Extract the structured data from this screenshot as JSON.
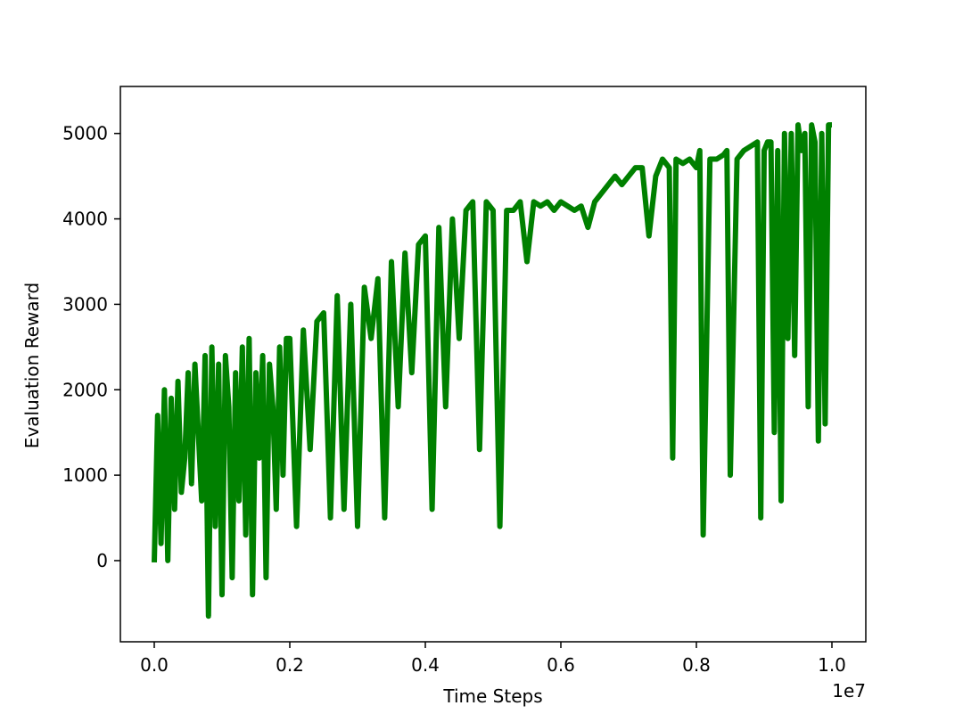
{
  "chart_data": {
    "type": "line",
    "title": "",
    "xlabel": "Time Steps",
    "ylabel": "Evaluation Reward",
    "x_offset_label": "1e7",
    "xlim": [
      -0.05,
      1.05
    ],
    "ylim": [
      -950,
      5550
    ],
    "x_ticks": [
      0.0,
      0.2,
      0.4,
      0.6,
      0.8,
      1.0
    ],
    "x_tick_labels": [
      "0.0",
      "0.2",
      "0.4",
      "0.6",
      "0.8",
      "1.0"
    ],
    "y_ticks": [
      0,
      1000,
      2000,
      3000,
      4000,
      5000
    ],
    "y_tick_labels": [
      "0",
      "1000",
      "2000",
      "3000",
      "4000",
      "5000"
    ],
    "grid": false,
    "legend": "none",
    "series": [
      {
        "color": "#008000",
        "x": [
          0.0,
          0.005,
          0.01,
          0.015,
          0.02,
          0.025,
          0.03,
          0.035,
          0.04,
          0.045,
          0.05,
          0.055,
          0.06,
          0.065,
          0.07,
          0.075,
          0.08,
          0.085,
          0.09,
          0.095,
          0.1,
          0.105,
          0.11,
          0.115,
          0.12,
          0.125,
          0.13,
          0.135,
          0.14,
          0.145,
          0.15,
          0.155,
          0.16,
          0.165,
          0.17,
          0.175,
          0.18,
          0.185,
          0.19,
          0.195,
          0.2,
          0.21,
          0.22,
          0.23,
          0.24,
          0.25,
          0.26,
          0.27,
          0.28,
          0.29,
          0.3,
          0.31,
          0.32,
          0.33,
          0.34,
          0.35,
          0.36,
          0.37,
          0.38,
          0.39,
          0.4,
          0.41,
          0.42,
          0.43,
          0.44,
          0.45,
          0.46,
          0.47,
          0.48,
          0.49,
          0.5,
          0.51,
          0.52,
          0.53,
          0.54,
          0.55,
          0.56,
          0.57,
          0.58,
          0.59,
          0.6,
          0.61,
          0.62,
          0.63,
          0.64,
          0.65,
          0.66,
          0.67,
          0.68,
          0.69,
          0.7,
          0.71,
          0.72,
          0.73,
          0.74,
          0.75,
          0.76,
          0.765,
          0.77,
          0.78,
          0.79,
          0.8,
          0.805,
          0.81,
          0.82,
          0.83,
          0.84,
          0.845,
          0.85,
          0.86,
          0.87,
          0.88,
          0.89,
          0.895,
          0.9,
          0.905,
          0.91,
          0.915,
          0.92,
          0.925,
          0.93,
          0.935,
          0.94,
          0.945,
          0.95,
          0.955,
          0.96,
          0.965,
          0.97,
          0.975,
          0.98,
          0.985,
          0.99,
          0.995,
          1.0
        ],
        "y": [
          -20,
          1700,
          200,
          2000,
          0,
          1900,
          600,
          2100,
          800,
          1200,
          2200,
          900,
          2300,
          1500,
          700,
          2400,
          -650,
          2500,
          400,
          2300,
          -400,
          2400,
          1800,
          -200,
          2200,
          700,
          2500,
          300,
          2600,
          -400,
          2200,
          1200,
          2400,
          -200,
          2300,
          1800,
          600,
          2500,
          1000,
          2600,
          2600,
          400,
          2700,
          1300,
          2800,
          2900,
          500,
          3100,
          600,
          3000,
          400,
          3200,
          2600,
          3300,
          500,
          3500,
          1800,
          3600,
          2200,
          3700,
          3800,
          600,
          3900,
          1800,
          4000,
          2600,
          4100,
          4200,
          1300,
          4200,
          4100,
          400,
          4100,
          4100,
          4200,
          3500,
          4200,
          4150,
          4200,
          4100,
          4200,
          4150,
          4100,
          4150,
          3900,
          4200,
          4300,
          4400,
          4500,
          4400,
          4500,
          4600,
          4600,
          3800,
          4500,
          4700,
          4600,
          1200,
          4700,
          4650,
          4700,
          4600,
          4800,
          300,
          4700,
          4700,
          4750,
          4800,
          1000,
          4700,
          4800,
          4850,
          4900,
          500,
          4800,
          4900,
          4900,
          1500,
          4800,
          700,
          5000,
          2600,
          5000,
          2400,
          5100,
          4800,
          5000,
          1800,
          5100,
          4900,
          1400,
          5000,
          1600,
          5100,
          5100
        ]
      }
    ]
  }
}
